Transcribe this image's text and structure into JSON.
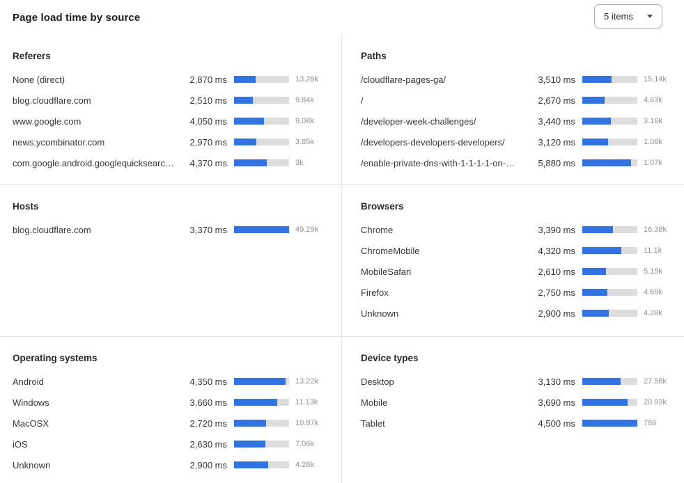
{
  "header": {
    "title": "Page load time by source",
    "items_dropdown": {
      "value": "5 items",
      "icon": "chevron-down-icon"
    }
  },
  "colors": {
    "bar_fill": "#3273e1",
    "bar_track": "#dcdddf",
    "divider": "#e3e4e5",
    "count_text": "#8d9299"
  },
  "chart_data": [
    {
      "type": "bar",
      "title": "Referers",
      "categories": [
        "None (direct)",
        "blog.cloudflare.com",
        "www.google.com",
        "news.ycombinator.com",
        "com.google.android.googlequicksearc…"
      ],
      "values": [
        2870,
        2510,
        4050,
        2970,
        4370
      ],
      "value_labels": [
        "2,870 ms",
        "2,510 ms",
        "4,050 ms",
        "2,970 ms",
        "4,370 ms"
      ],
      "counts": [
        "13.26k",
        "9.84k",
        "9.08k",
        "3.85k",
        "3k"
      ],
      "xlabel": "ms",
      "xlim": [
        0,
        7400
      ]
    },
    {
      "type": "bar",
      "title": "Paths",
      "categories": [
        "/cloudflare-pages-ga/",
        "/",
        "/developer-week-challenges/",
        "/developers-developers-developers/",
        "/enable-private-dns-with-1-1-1-1-on-…"
      ],
      "values": [
        3510,
        2670,
        3440,
        3120,
        5880
      ],
      "value_labels": [
        "3,510 ms",
        "2,670 ms",
        "3,440 ms",
        "3,120 ms",
        "5,880 ms"
      ],
      "counts": [
        "15.14k",
        "4.63k",
        "3.16k",
        "1.08k",
        "1.07k"
      ],
      "xlabel": "ms",
      "xlim": [
        0,
        6600
      ]
    },
    {
      "type": "bar",
      "title": "Hosts",
      "categories": [
        "blog.cloudflare.com"
      ],
      "values": [
        3370
      ],
      "value_labels": [
        "3,370 ms"
      ],
      "counts": [
        "49.29k"
      ],
      "xlabel": "ms",
      "xlim": [
        0,
        3370
      ]
    },
    {
      "type": "bar",
      "title": "Browsers",
      "categories": [
        "Chrome",
        "ChromeMobile",
        "MobileSafari",
        "Firefox",
        "Unknown"
      ],
      "values": [
        3390,
        4320,
        2610,
        2750,
        2900
      ],
      "value_labels": [
        "3,390 ms",
        "4,320 ms",
        "2,610 ms",
        "2,750 ms",
        "2,900 ms"
      ],
      "counts": [
        "16.38k",
        "11.1k",
        "5.15k",
        "4.69k",
        "4.28k"
      ],
      "xlabel": "ms",
      "xlim": [
        0,
        6100
      ]
    },
    {
      "type": "bar",
      "title": "Operating systems",
      "categories": [
        "Android",
        "Windows",
        "MacOSX",
        "iOS",
        "Unknown"
      ],
      "values": [
        4350,
        3660,
        2720,
        2630,
        2900
      ],
      "value_labels": [
        "4,350 ms",
        "3,660 ms",
        "2,720 ms",
        "2,630 ms",
        "2,900 ms"
      ],
      "counts": [
        "13.22k",
        "11.13k",
        "10.97k",
        "7.06k",
        "4.28k"
      ],
      "xlabel": "ms",
      "xlim": [
        0,
        4650
      ]
    },
    {
      "type": "bar",
      "title": "Device types",
      "categories": [
        "Desktop",
        "Mobile",
        "Tablet"
      ],
      "values": [
        3130,
        3690,
        4500
      ],
      "value_labels": [
        "3,130 ms",
        "3,690 ms",
        "4,500 ms"
      ],
      "counts": [
        "27.58k",
        "20.93k",
        "786"
      ],
      "xlabel": "ms",
      "xlim": [
        0,
        4500
      ]
    }
  ]
}
